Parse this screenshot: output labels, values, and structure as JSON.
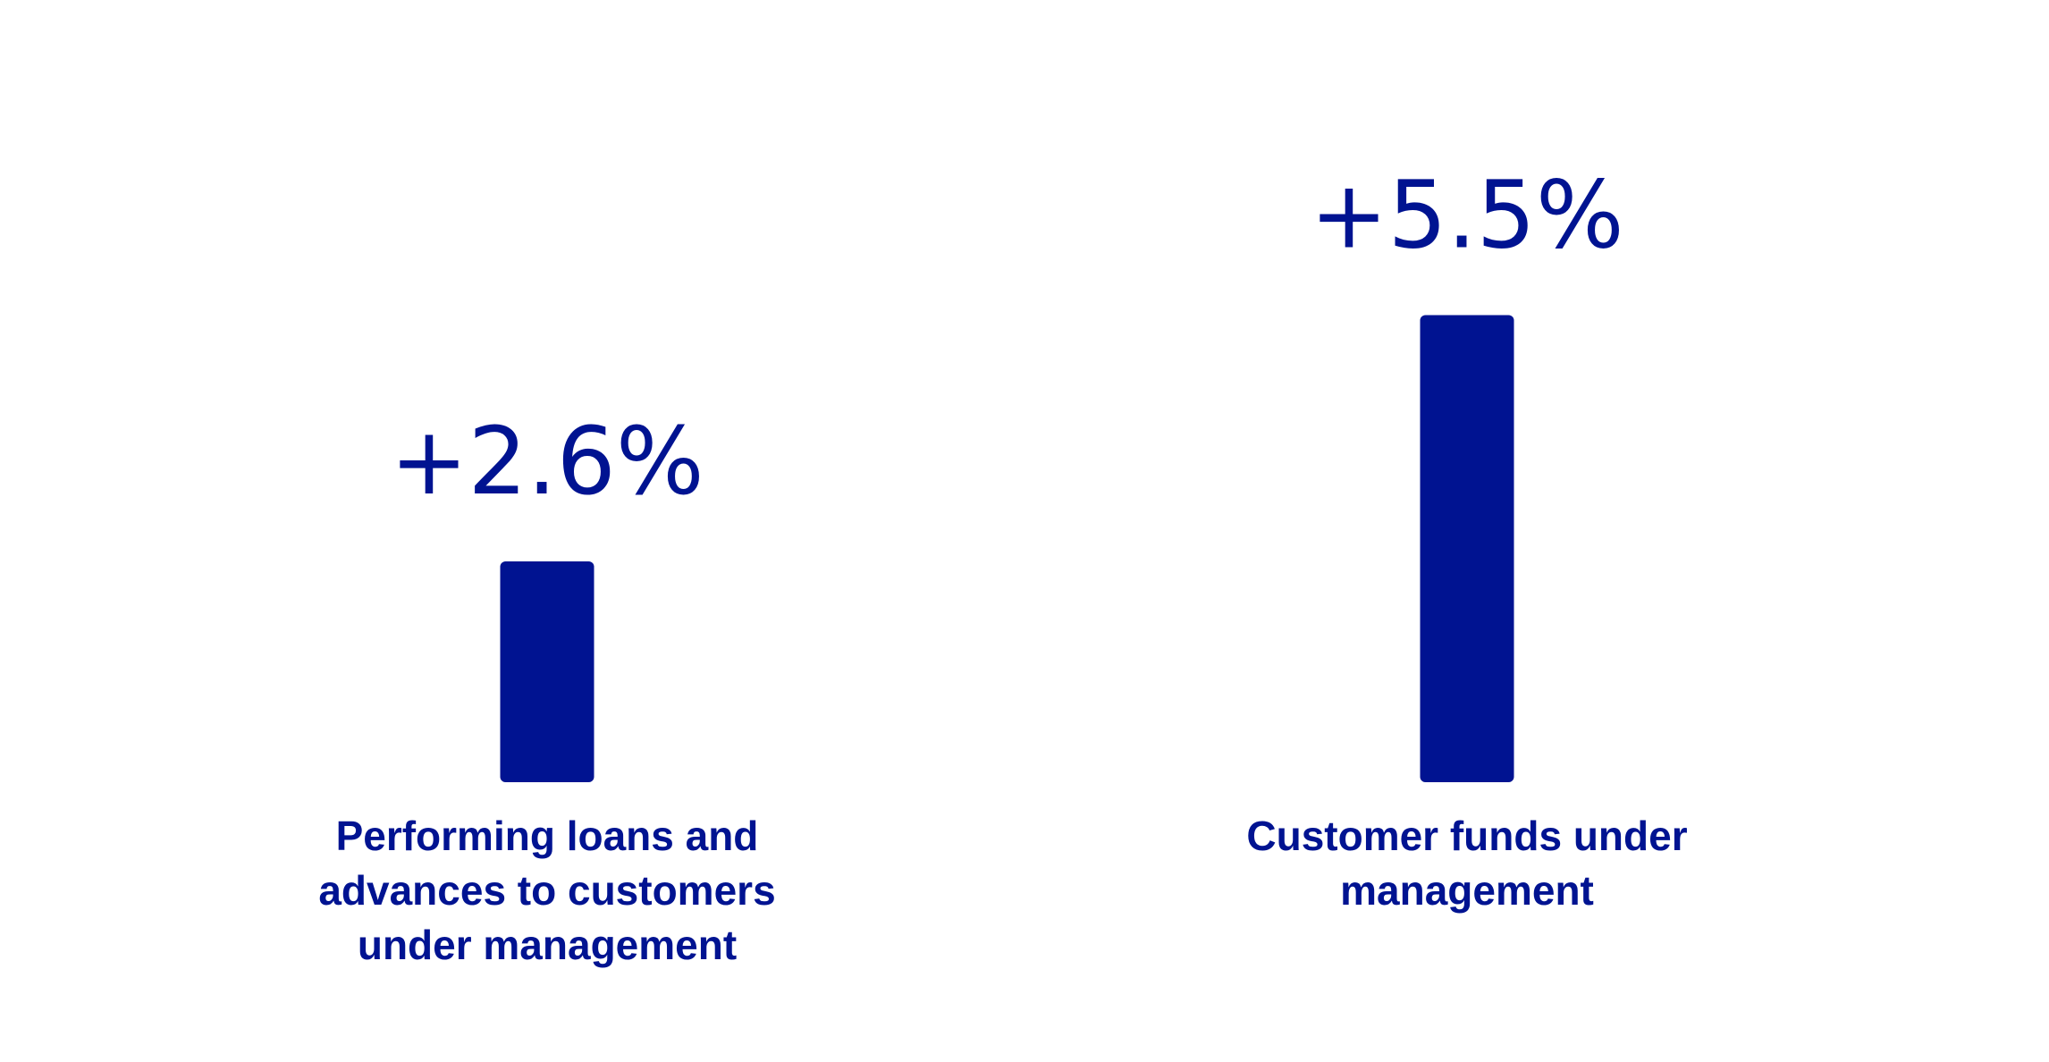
{
  "chart_data": {
    "type": "bar",
    "categories": [
      "Performing loans and advances to customers under management",
      "Customer funds under management"
    ],
    "values": [
      2.6,
      5.5
    ],
    "value_labels": [
      "+2.6%",
      "+5.5%"
    ],
    "color": "#001391"
  }
}
